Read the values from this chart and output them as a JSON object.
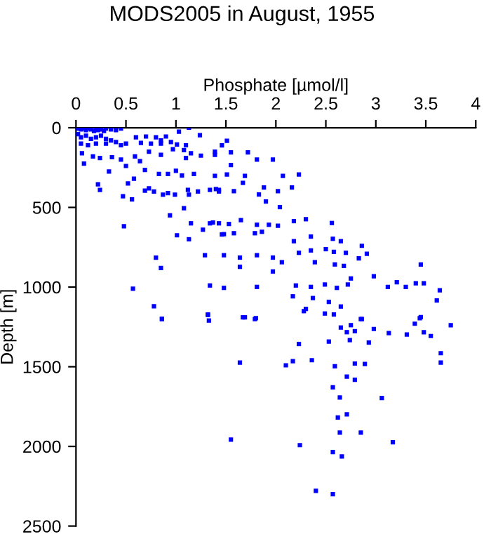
{
  "chart_data": {
    "type": "scatter",
    "title": "MODS2005 in August, 1955",
    "xlabel": "Phosphate [µmol/l]",
    "ylabel": "Depth [m]",
    "x": [
      0.02,
      0.05,
      0.08,
      0.1,
      0.12,
      0.15,
      0.18,
      0.2,
      0.22,
      0.25,
      0.28,
      0.3,
      0.35,
      0.4,
      0.45,
      0.02,
      0.05,
      0.1,
      0.15,
      0.2,
      0.25,
      0.3,
      0.35,
      0.05,
      0.12,
      0.2,
      0.3,
      0.4,
      0.45,
      0.5,
      0.6,
      0.7,
      0.8,
      0.85,
      0.9,
      0.65,
      0.75,
      0.85,
      0.95,
      1.03,
      1.13,
      1.24,
      1.01,
      1.1,
      0.06,
      0.17,
      0.24,
      0.36,
      0.45,
      0.59,
      0.64,
      0.73,
      0.85,
      0.97,
      1.08,
      1.1,
      1.15,
      1.25,
      1.39,
      0.08,
      0.33,
      0.5,
      0.69,
      0.83,
      0.92,
      1.0,
      1.06,
      1.18,
      0.22,
      0.24,
      0.52,
      0.58,
      0.69,
      0.73,
      0.78,
      0.87,
      0.92,
      0.99,
      1.12,
      1.13,
      1.22,
      1.34,
      1.4,
      1.43,
      0.47,
      0.56,
      0.94,
      1.08,
      0.48,
      1.01,
      1.13,
      1.15,
      1.27,
      1.34,
      1.43,
      1.46,
      1.29,
      0.8,
      0.85,
      0.57,
      1.34,
      1.48,
      0.78,
      0.86,
      1.32,
      1.51,
      1.46,
      1.39,
      1.55,
      1.72,
      1.81,
      1.97,
      1.55,
      1.69,
      1.39,
      1.51,
      1.67,
      2.07,
      2.23,
      1.43,
      1.58,
      1.83,
      1.88,
      2.02,
      2.16,
      1.9,
      2.04,
      1.37,
      1.53,
      1.65,
      1.81,
      1.93,
      2.02,
      2.18,
      2.3,
      2.56,
      1.48,
      1.58,
      1.79,
      1.86,
      2.18,
      2.35,
      2.57,
      2.65,
      2.86,
      2.91,
      1.48,
      1.64,
      1.81,
      1.97,
      2.06,
      2.23,
      2.35,
      2.5,
      2.58,
      2.7,
      1.64,
      1.97,
      2.39,
      2.59,
      2.68,
      2.83,
      3.45,
      2.75,
      2.98,
      3.21,
      3.3,
      3.4,
      3.48,
      3.64,
      3.12,
      1.81,
      2.2,
      2.35,
      2.49,
      2.61,
      2.72,
      2.17,
      2.37,
      2.53,
      2.65,
      2.3,
      3.61,
      2.49,
      2.58,
      1.69,
      1.8,
      2.86,
      3.44,
      0.86,
      1.32,
      1.33,
      1.67,
      1.79,
      1.64,
      1.55,
      2.28,
      2.65,
      2.71,
      2.75,
      2.79,
      2.74,
      2.85,
      2.98,
      3.13,
      3.31,
      3.39,
      3.45,
      3.48,
      3.55,
      3.75,
      3.65,
      3.65,
      2.93,
      2.53,
      2.23,
      2.1,
      2.17,
      2.36,
      2.59,
      2.79,
      2.89,
      2.71,
      2.79,
      2.57,
      2.64,
      3.06,
      2.62,
      2.71,
      2.64,
      2.85,
      2.24,
      2.57,
      2.66,
      3.17,
      2.4,
      2.57
    ],
    "values": [
      5,
      10,
      5,
      15,
      5,
      10,
      20,
      5,
      15,
      10,
      20,
      5,
      10,
      15,
      5,
      40,
      60,
      50,
      70,
      60,
      50,
      70,
      80,
      100,
      110,
      100,
      100,
      90,
      110,
      100,
      60,
      55,
      60,
      80,
      55,
      95,
      100,
      100,
      90,
      25,
      0,
      47,
      105,
      110,
      160,
      180,
      190,
      185,
      200,
      180,
      210,
      150,
      170,
      135,
      140,
      190,
      160,
      175,
      150,
      225,
      275,
      240,
      265,
      290,
      290,
      270,
      300,
      290,
      355,
      390,
      350,
      320,
      395,
      380,
      400,
      420,
      410,
      420,
      390,
      420,
      400,
      390,
      385,
      400,
      430,
      450,
      550,
      505,
      618,
      675,
      700,
      600,
      640,
      600,
      600,
      670,
      800,
      815,
      880,
      1010,
      990,
      1005,
      1120,
      1200,
      1175,
      82,
      111,
      170,
      155,
      155,
      200,
      200,
      234,
      302,
      302,
      293,
      346,
      302,
      293,
      390,
      398,
      419,
      375,
      398,
      375,
      463,
      498,
      595,
      604,
      580,
      609,
      609,
      615,
      586,
      574,
      598,
      668,
      662,
      662,
      653,
      712,
      683,
      697,
      712,
      741,
      791,
      800,
      815,
      800,
      815,
      844,
      785,
      770,
      762,
      779,
      785,
      873,
      902,
      844,
      858,
      867,
      820,
      858,
      946,
      932,
      970,
      999,
      976,
      976,
      1020,
      999,
      999,
      990,
      999,
      984,
      1005,
      984,
      1058,
      1069,
      1093,
      1122,
      1137,
      1084,
      1166,
      1172,
      1190,
      1195,
      1201,
      1195,
      1201,
      1172,
      1210,
      1190,
      1201,
      1474,
      1957,
      1151,
      1254,
      1283,
      1239,
      1277,
      1333,
      1201,
      1263,
      1289,
      1298,
      1230,
      1189,
      1283,
      1307,
      1239,
      1415,
      1474,
      1348,
      1342,
      1357,
      1491,
      1465,
      1459,
      1497,
      1480,
      1483,
      1562,
      1582,
      1629,
      1693,
      1696,
      1819,
      1799,
      1913,
      1913,
      1992,
      2036,
      2063,
      1974,
      2279,
      2300
    ],
    "color": "#0000ff",
    "marker": "square",
    "xlim": [
      0,
      4
    ],
    "xticks": [
      0,
      0.5,
      1,
      1.5,
      2,
      2.5,
      3,
      3.5,
      4
    ],
    "ylim": [
      2500,
      0
    ],
    "yticks": [
      0,
      500,
      1000,
      1500,
      2000,
      2500
    ],
    "grid": false,
    "legend": false
  }
}
